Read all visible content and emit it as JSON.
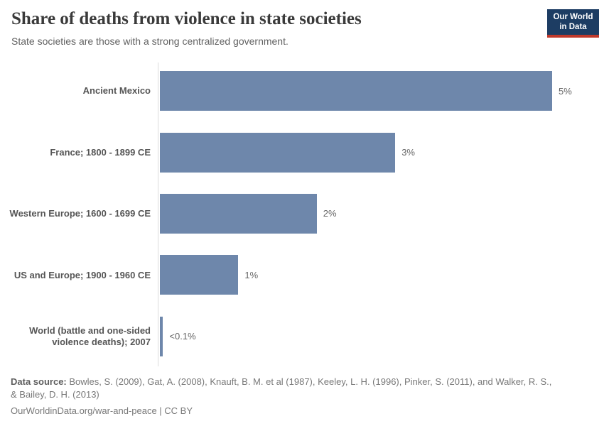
{
  "header": {
    "title": "Share of deaths from violence in state societies",
    "subtitle": "State societies are those with a strong centralized government.",
    "logo": {
      "line1": "Our World",
      "line2": "in Data",
      "bg_color": "#1d3d63",
      "accent_color": "#c0392b",
      "text_color": "#ffffff"
    }
  },
  "chart_data": {
    "type": "bar",
    "orientation": "horizontal",
    "title": "Share of deaths from violence in state societies",
    "subtitle": "State societies are those with a strong centralized government.",
    "categories": [
      "Ancient Mexico",
      "France; 1800 - 1899 CE",
      "Western Europe; 1600 - 1699 CE",
      "US and Europe; 1900 - 1960 CE",
      "World (battle and one-sided violence deaths); 2007"
    ],
    "values": [
      5,
      3,
      2,
      1,
      0.04
    ],
    "value_labels": [
      "5%",
      "3%",
      "2%",
      "1%",
      "<0.1%"
    ],
    "unit": "%",
    "xlim": [
      0,
      5
    ],
    "grid": false,
    "legend": "none",
    "bar_color": "#6e87ab",
    "axis_line_color": "#dcdcdc",
    "category_label_color": "#555555",
    "value_label_color": "#666666"
  },
  "footer": {
    "source_label": "Data source:",
    "source_text": "Bowles, S. (2009), Gat, A. (2008), Knauft, B. M. et al (1987), Keeley, L. H. (1996), Pinker, S. (2011), and Walker, R. S., & Bailey, D. H. (2013)",
    "link_text": "OurWorldinData.org/war-and-peace | CC BY"
  }
}
